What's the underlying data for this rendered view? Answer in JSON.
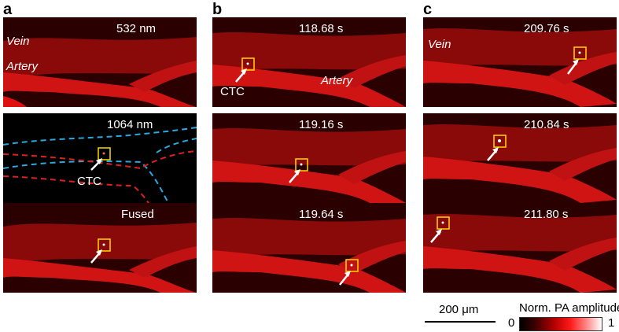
{
  "panels": {
    "a": {
      "letter": "a",
      "tiles": [
        {
          "label": "532 nm",
          "vessel_labels": [
            "Vein",
            "Artery"
          ],
          "ctc_label": "",
          "view": "red"
        },
        {
          "label": "1064 nm",
          "vessel_labels": [],
          "ctc_label": "CTC",
          "view": "outline"
        },
        {
          "label": "Fused",
          "vessel_labels": [],
          "ctc_label": "",
          "view": "red"
        }
      ]
    },
    "b": {
      "letter": "b",
      "tiles": [
        {
          "label": "118.68 s",
          "vessel_labels": [
            "Artery"
          ],
          "ctc_label": "CTC",
          "view": "red"
        },
        {
          "label": "119.16 s",
          "vessel_labels": [],
          "ctc_label": "",
          "view": "red"
        },
        {
          "label": "119.64 s",
          "vessel_labels": [],
          "ctc_label": "",
          "view": "red"
        }
      ]
    },
    "c": {
      "letter": "c",
      "tiles": [
        {
          "label": "209.76 s",
          "vessel_labels": [
            "Vein"
          ],
          "ctc_label": "",
          "view": "red"
        },
        {
          "label": "210.84 s",
          "vessel_labels": [],
          "ctc_label": "",
          "view": "red"
        },
        {
          "label": "211.80 s",
          "vessel_labels": [],
          "ctc_label": "",
          "view": "red"
        }
      ]
    }
  },
  "scalebar": {
    "label": "200 μm"
  },
  "colorbar": {
    "title": "Norm. PA amplitude",
    "min_label": "0",
    "max_label": "1"
  },
  "colors": {
    "vessel_red": "#e01010",
    "background_dark": "#140000",
    "vein_outline": "#2aa8e0",
    "artery_outline": "#e02020",
    "marker_box": "#ffd700",
    "arrow": "#ffffff"
  }
}
